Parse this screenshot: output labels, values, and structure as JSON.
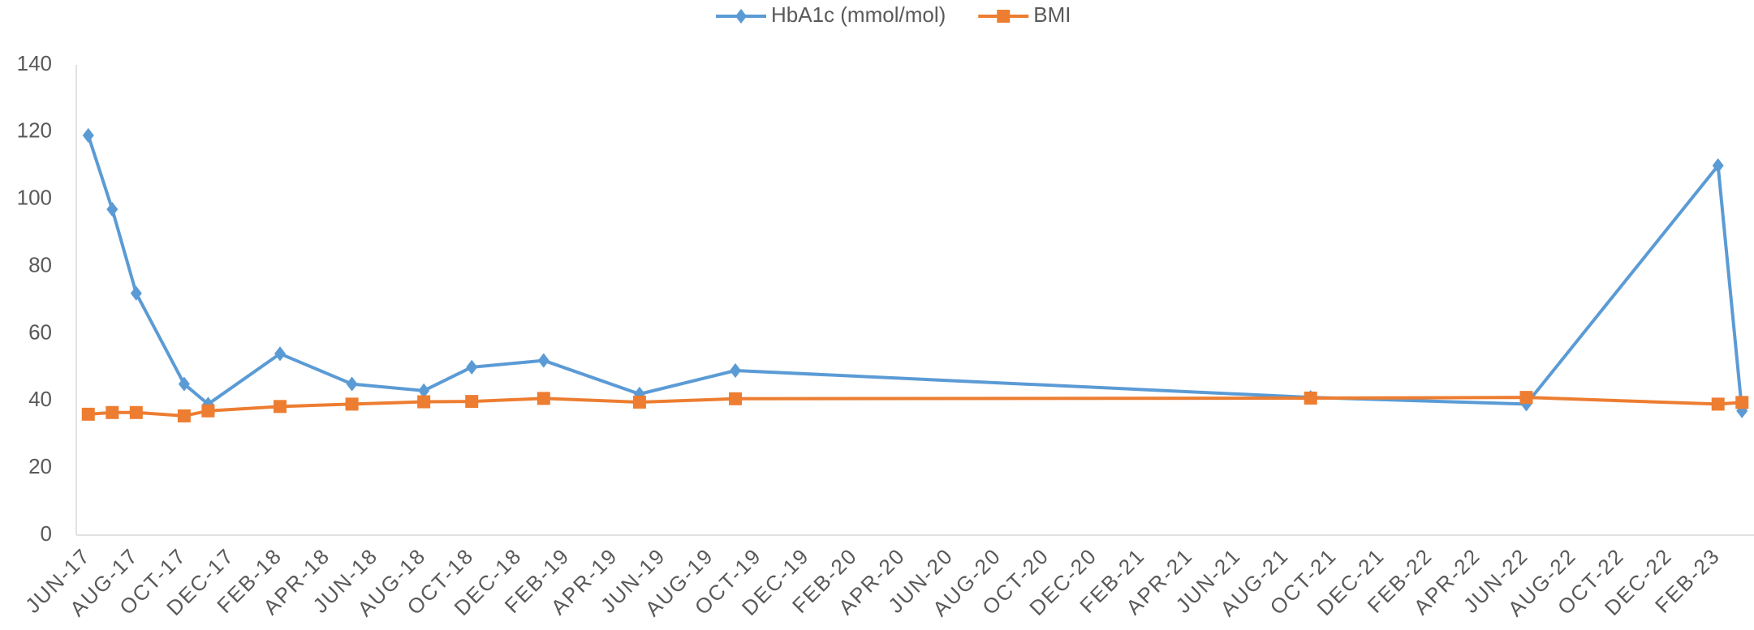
{
  "chart_data": {
    "type": "line",
    "x": [
      "2017-06",
      "2017-07",
      "2017-08",
      "2017-10",
      "2017-11",
      "2018-02",
      "2018-05",
      "2018-08",
      "2018-10",
      "2019-01",
      "2019-05",
      "2019-09",
      "2021-09",
      "2022-06",
      "2023-02",
      "2023-03"
    ],
    "series": [
      {
        "name": "HbA1c (mmol/mol)",
        "color": "#5b9bd5",
        "marker": "diamond",
        "values": [
          119,
          97,
          72,
          45,
          39,
          54,
          45,
          43,
          50,
          52,
          42,
          49,
          41,
          39,
          110,
          37
        ]
      },
      {
        "name": "BMI",
        "color": "#ed7d31",
        "marker": "square",
        "values": [
          36,
          36.5,
          36.5,
          35.5,
          37,
          38.3,
          39,
          39.7,
          39.8,
          40.7,
          39.6,
          40.6,
          40.8,
          41,
          39,
          39.5
        ]
      }
    ],
    "xlim": [
      "2017-06",
      "2023-04"
    ],
    "xticks": [
      {
        "value": "2017-06",
        "label": "JUN-17"
      },
      {
        "value": "2017-08",
        "label": "AUG-17"
      },
      {
        "value": "2017-10",
        "label": "OCT-17"
      },
      {
        "value": "2017-12",
        "label": "DEC-17"
      },
      {
        "value": "2018-02",
        "label": "FEB-18"
      },
      {
        "value": "2018-04",
        "label": "APR-18"
      },
      {
        "value": "2018-06",
        "label": "JUN-18"
      },
      {
        "value": "2018-08",
        "label": "AUG-18"
      },
      {
        "value": "2018-10",
        "label": "OCT-18"
      },
      {
        "value": "2018-12",
        "label": "DEC-18"
      },
      {
        "value": "2019-02",
        "label": "FEB-19"
      },
      {
        "value": "2019-04",
        "label": "APR-19"
      },
      {
        "value": "2019-06",
        "label": "JUN-19"
      },
      {
        "value": "2019-08",
        "label": "AUG-19"
      },
      {
        "value": "2019-10",
        "label": "OCT-19"
      },
      {
        "value": "2019-12",
        "label": "DEC-19"
      },
      {
        "value": "2020-02",
        "label": "FEB-20"
      },
      {
        "value": "2020-04",
        "label": "APR-20"
      },
      {
        "value": "2020-06",
        "label": "JUN-20"
      },
      {
        "value": "2020-08",
        "label": "AUG-20"
      },
      {
        "value": "2020-10",
        "label": "OCT-20"
      },
      {
        "value": "2020-12",
        "label": "DEC-20"
      },
      {
        "value": "2021-02",
        "label": "FEB-21"
      },
      {
        "value": "2021-04",
        "label": "APR-21"
      },
      {
        "value": "2021-06",
        "label": "JUN-21"
      },
      {
        "value": "2021-08",
        "label": "AUG-21"
      },
      {
        "value": "2021-10",
        "label": "OCT-21"
      },
      {
        "value": "2021-12",
        "label": "DEC-21"
      },
      {
        "value": "2022-02",
        "label": "FEB-22"
      },
      {
        "value": "2022-04",
        "label": "APR-22"
      },
      {
        "value": "2022-06",
        "label": "JUN-22"
      },
      {
        "value": "2022-08",
        "label": "AUG-22"
      },
      {
        "value": "2022-10",
        "label": "OCT-22"
      },
      {
        "value": "2022-12",
        "label": "DEC-22"
      },
      {
        "value": "2023-02",
        "label": "FEB-23"
      }
    ],
    "ylim": [
      0,
      140
    ],
    "yticks": [
      0,
      20,
      40,
      60,
      80,
      100,
      120,
      140
    ],
    "grid": false,
    "legend": "top"
  }
}
